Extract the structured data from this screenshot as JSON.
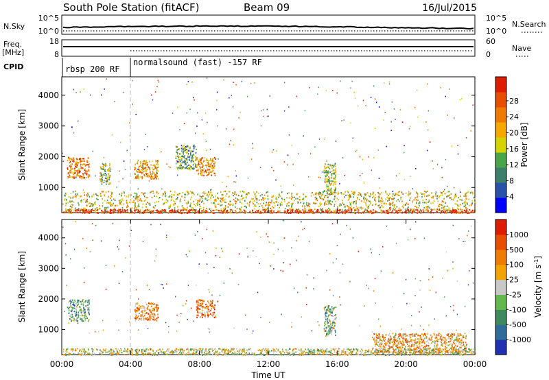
{
  "header": {
    "station": "South Pole Station (fitACF)",
    "beam": "Beam 09",
    "date": "16/Jul/2015"
  },
  "top_strips": {
    "nsky_label": "N.Sky",
    "nsky_ticks": [
      "10^5",
      "10^0"
    ],
    "nsearch_label": "N.Search",
    "nsearch_ticks": [
      "10^5",
      "10^0"
    ],
    "freq_label": "Freq.",
    "freq_unit": "[MHz]",
    "freq_ticks": [
      "18",
      "8"
    ],
    "nave_label": "Nave",
    "nave_ticks": [
      "60",
      "0"
    ],
    "cpid_label": "CPID",
    "cpid_segments": [
      {
        "label": "rbsp 200 RF",
        "start_hour": 0
      },
      {
        "label": "normalsound (fast) -157 RF",
        "start_hour": 4
      }
    ]
  },
  "chart_data": [
    {
      "type": "heatmap",
      "name": "power-panel",
      "ylabel": "Slant Range [km]",
      "xlabel": "",
      "x_range_hours": [
        0,
        24
      ],
      "ylim": [
        180,
        4600
      ],
      "yticks": [
        1000,
        2000,
        3000,
        4000
      ],
      "colorbar": {
        "label": "Power [dB]",
        "ticks": [
          "4",
          "8",
          "12",
          "16",
          "20",
          "24",
          "28"
        ],
        "colors": [
          "#0000ff",
          "#2a52a8",
          "#3e7f6c",
          "#4aa44a",
          "#d6d400",
          "#f5a800",
          "#ee7a00",
          "#e84e00",
          "#dd1c00"
        ]
      },
      "echo_regions": [
        {
          "t0": 0.3,
          "t1": 1.6,
          "r0": 1300,
          "r1": 2000,
          "level": 0.75
        },
        {
          "t0": 2.2,
          "t1": 2.8,
          "r0": 1100,
          "r1": 1800,
          "level": 0.45
        },
        {
          "t0": 4.2,
          "t1": 5.6,
          "r0": 1300,
          "r1": 1900,
          "level": 0.65
        },
        {
          "t0": 6.6,
          "t1": 7.8,
          "r0": 1600,
          "r1": 2400,
          "level": 0.35
        },
        {
          "t0": 7.8,
          "t1": 8.9,
          "r0": 1400,
          "r1": 2000,
          "level": 0.7
        },
        {
          "t0": 15.2,
          "t1": 15.9,
          "r0": 800,
          "r1": 1800,
          "level": 0.45
        },
        {
          "t0": 0,
          "t1": 24,
          "r0": 180,
          "r1": 900,
          "level": 0.55
        },
        {
          "t0": 0,
          "t1": 24,
          "r0": 180,
          "r1": 300,
          "level": 0.95
        }
      ]
    },
    {
      "type": "heatmap",
      "name": "velocity-panel",
      "ylabel": "Slant Range [km]",
      "xlabel": "Time UT",
      "x_range_hours": [
        0,
        24
      ],
      "x_tick_labels": [
        "00:00",
        "04:00",
        "08:00",
        "12:00",
        "16:00",
        "20:00",
        "00:00"
      ],
      "ylim": [
        180,
        4600
      ],
      "yticks": [
        1000,
        2000,
        3000,
        4000
      ],
      "colorbar": {
        "label": "Velocity [m s-1]",
        "ticks": [
          "1000",
          "500",
          "100",
          "25",
          "-25",
          "-100",
          "-500",
          "-1000"
        ],
        "colors": [
          "#2030b0",
          "#2f6c9a",
          "#3e8a5e",
          "#62b84a",
          "#c8c8c8",
          "#f1a400",
          "#ee7c00",
          "#e84e00",
          "#dd1c00"
        ]
      },
      "echo_regions": [
        {
          "t0": 0.3,
          "t1": 1.6,
          "r0": 1300,
          "r1": 2000,
          "level": 0.35
        },
        {
          "t0": 4.2,
          "t1": 5.6,
          "r0": 1300,
          "r1": 1900,
          "level": 0.7
        },
        {
          "t0": 7.8,
          "t1": 8.9,
          "r0": 1400,
          "r1": 2000,
          "level": 0.75
        },
        {
          "t0": 15.2,
          "t1": 15.9,
          "r0": 800,
          "r1": 1800,
          "level": 0.35
        },
        {
          "t0": 18.0,
          "t1": 23.5,
          "r0": 250,
          "r1": 900,
          "level": 0.65
        },
        {
          "t0": 0,
          "t1": 24,
          "r0": 180,
          "r1": 400,
          "level": 0.5
        }
      ]
    }
  ]
}
